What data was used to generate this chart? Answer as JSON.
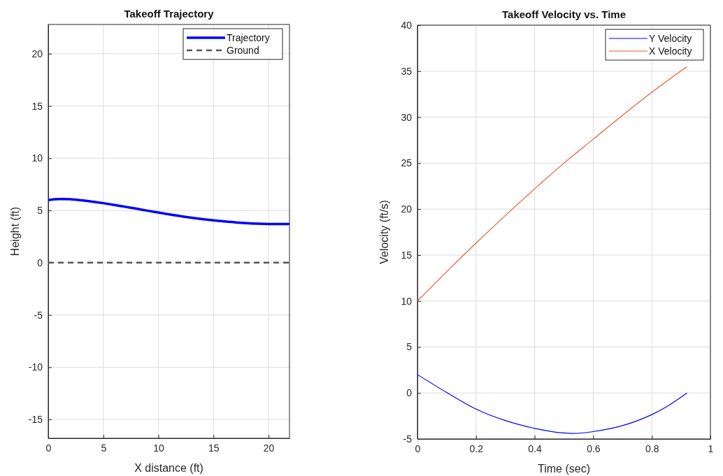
{
  "chart_data": [
    {
      "type": "line",
      "title": "Takeoff Trajectory",
      "xlabel": "X distance (ft)",
      "ylabel": "Height (ft)",
      "xlim": [
        0,
        21.9
      ],
      "ylim": [
        -16.8,
        22.8
      ],
      "xticks": [
        0,
        5,
        10,
        15,
        20
      ],
      "yticks": [
        -15,
        -10,
        -5,
        0,
        5,
        10,
        15,
        20
      ],
      "grid": true,
      "legend": "top right",
      "series": [
        {
          "name": "Trajectory",
          "color": "#0000ff",
          "line_style": "solid",
          "x": [
            0,
            0.6,
            1.2,
            2,
            3,
            4,
            5,
            6,
            7,
            8,
            9,
            10,
            11,
            12,
            13,
            14,
            15,
            16,
            17,
            18,
            19,
            20,
            21,
            21.9
          ],
          "values": [
            6.0,
            6.08,
            6.1,
            6.07,
            5.97,
            5.85,
            5.7,
            5.53,
            5.35,
            5.17,
            4.98,
            4.8,
            4.62,
            4.46,
            4.31,
            4.17,
            4.05,
            3.95,
            3.86,
            3.79,
            3.74,
            3.71,
            3.7,
            3.7
          ]
        },
        {
          "name": "Ground",
          "color": "#555555",
          "line_style": "dashed",
          "x": [
            0,
            21.9
          ],
          "values": [
            0,
            0
          ]
        }
      ]
    },
    {
      "type": "line",
      "title": "Takeoff Velocity vs. Time",
      "xlabel": "Time (sec)",
      "ylabel": "Velocity (ft/s)",
      "xlim": [
        0,
        1
      ],
      "ylim": [
        -5,
        40
      ],
      "xticks": [
        0,
        0.2,
        0.4,
        0.6,
        0.8,
        1
      ],
      "yticks": [
        -5,
        0,
        5,
        10,
        15,
        20,
        25,
        30,
        35,
        40
      ],
      "grid": true,
      "legend": "top right",
      "series": [
        {
          "name": "Y Velocity",
          "color": "#0000ff",
          "line_style": "solid",
          "x": [
            0,
            0.1,
            0.2,
            0.3,
            0.4,
            0.45,
            0.5,
            0.53,
            0.6,
            0.7,
            0.8,
            0.85,
            0.92
          ],
          "values": [
            2,
            0.05,
            -1.75,
            -3.0,
            -3.85,
            -4.15,
            -4.35,
            -4.4,
            -4.2,
            -3.55,
            -2.35,
            -1.5,
            0
          ]
        },
        {
          "name": "X Velocity",
          "color": "#e06030",
          "line_style": "solid",
          "x": [
            0,
            0.1,
            0.2,
            0.3,
            0.4,
            0.5,
            0.6,
            0.7,
            0.8,
            0.92
          ],
          "values": [
            10,
            13.2,
            16.3,
            19.3,
            22.2,
            25.0,
            27.6,
            30.2,
            32.7,
            35.5
          ]
        }
      ]
    }
  ]
}
